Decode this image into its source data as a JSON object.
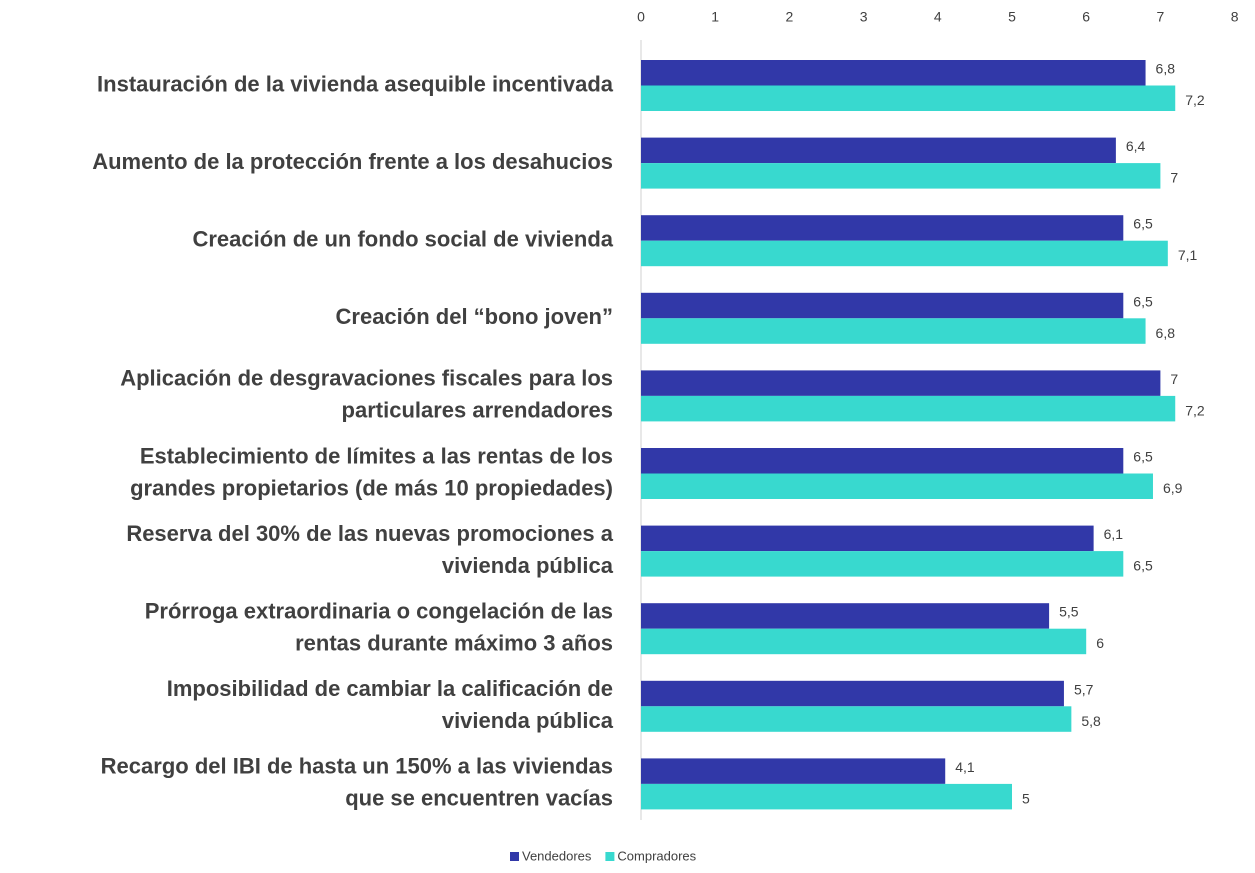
{
  "chart_data": {
    "type": "hbar",
    "categories": [
      [
        "Instauración de la vivienda asequible incentivada"
      ],
      [
        "Aumento de la protección frente a los desahucios"
      ],
      [
        "Creación de un fondo social de vivienda"
      ],
      [
        "Creación del “bono joven”"
      ],
      [
        "Aplicación de desgravaciones fiscales para los",
        "particulares arrendadores"
      ],
      [
        "Establecimiento de límites a las rentas de los",
        "grandes propietarios (de más 10 propiedades)"
      ],
      [
        "Reserva del 30% de las nuevas promociones a",
        "vivienda pública"
      ],
      [
        "Prórroga extraordinaria o congelación de las",
        "rentas durante máximo 3 años"
      ],
      [
        "Imposibilidad de cambiar la calificación de",
        "vivienda pública"
      ],
      [
        "Recargo del IBI de hasta un 150% a las viviendas",
        "que se encuentren vacías"
      ]
    ],
    "series": [
      {
        "name": "Vendedores",
        "color": "#3138a8",
        "values": [
          6.8,
          6.4,
          6.5,
          6.5,
          7,
          6.5,
          6.1,
          5.5,
          5.7,
          4.1
        ],
        "value_labels": [
          "6,8",
          "6,4",
          "6,5",
          "6,5",
          "7",
          "6,5",
          "6,1",
          "5,5",
          "5,7",
          "4,1"
        ]
      },
      {
        "name": "Compradores",
        "color": "#38d9cf",
        "values": [
          7.2,
          7,
          7.1,
          6.8,
          7.2,
          6.9,
          6.5,
          6,
          5.8,
          5
        ],
        "value_labels": [
          "7,2",
          "7",
          "7,1",
          "6,8",
          "7,2",
          "6,9",
          "6,5",
          "6",
          "5,8",
          "5"
        ]
      }
    ],
    "xlim": [
      0,
      8
    ],
    "xticks": [
      0,
      1,
      2,
      3,
      4,
      5,
      6,
      7,
      8
    ]
  }
}
